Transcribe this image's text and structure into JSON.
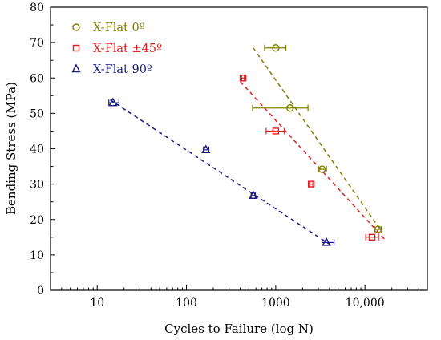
{
  "chart_data": {
    "type": "scatter",
    "xlabel": "Cycles to Failure (log N)",
    "ylabel": "Bending Stress (MPa)",
    "x_scale": "log",
    "xlim": [
      3,
      50000
    ],
    "ylim": [
      0,
      80
    ],
    "x_ticks": [
      {
        "value": 10,
        "label": "10"
      },
      {
        "value": 100,
        "label": "100"
      },
      {
        "value": 1000,
        "label": "1000"
      },
      {
        "value": 10000,
        "label": "10,000"
      }
    ],
    "y_ticks": [
      0,
      10,
      20,
      30,
      40,
      50,
      60,
      70,
      80
    ],
    "legend_position": "top-left",
    "series": [
      {
        "name": "X-Flat 0º",
        "color": "#808000",
        "marker": "circle",
        "points": [
          {
            "x": 1000,
            "y": 68.5,
            "xerr": [
              750,
              1300
            ]
          },
          {
            "x": 1450,
            "y": 51.5,
            "xerr": [
              550,
              2300
            ]
          },
          {
            "x": 3300,
            "y": 34.2,
            "xerr": [
              3000,
              3700
            ]
          },
          {
            "x": 14000,
            "y": 17.2,
            "xerr": [
              12800,
              15300
            ]
          }
        ],
        "trend": [
          {
            "x": 560,
            "y": 68.5
          },
          {
            "x": 15500,
            "y": 16.5
          }
        ]
      },
      {
        "name": "X-Flat ±45º",
        "color": "#e02020",
        "marker": "square",
        "points": [
          {
            "x": 430,
            "y": 60,
            "xerr": [
              415,
              445
            ]
          },
          {
            "x": 1000,
            "y": 45,
            "xerr": [
              780,
              1250
            ]
          },
          {
            "x": 2500,
            "y": 30,
            "xerr": [
              2400,
              2600
            ]
          },
          {
            "x": 12000,
            "y": 15,
            "xerr": [
              10200,
              14200
            ]
          }
        ],
        "trend": [
          {
            "x": 400,
            "y": 59
          },
          {
            "x": 16500,
            "y": 14.5
          }
        ]
      },
      {
        "name": "X-Flat 90º",
        "color": "#1a1a80",
        "marker": "triangle",
        "points": [
          {
            "x": 15,
            "y": 53,
            "xerr": [
              13.5,
              17.5
            ]
          },
          {
            "x": 165,
            "y": 39.7,
            "xerr": [
              155,
              178
            ]
          },
          {
            "x": 560,
            "y": 26.8,
            "xerr": [
              530,
              590
            ]
          },
          {
            "x": 3700,
            "y": 13.5,
            "xerr": [
              3300,
              4500
            ]
          }
        ],
        "trend": [
          {
            "x": 14,
            "y": 53.8
          },
          {
            "x": 4300,
            "y": 12.5
          }
        ]
      }
    ]
  }
}
